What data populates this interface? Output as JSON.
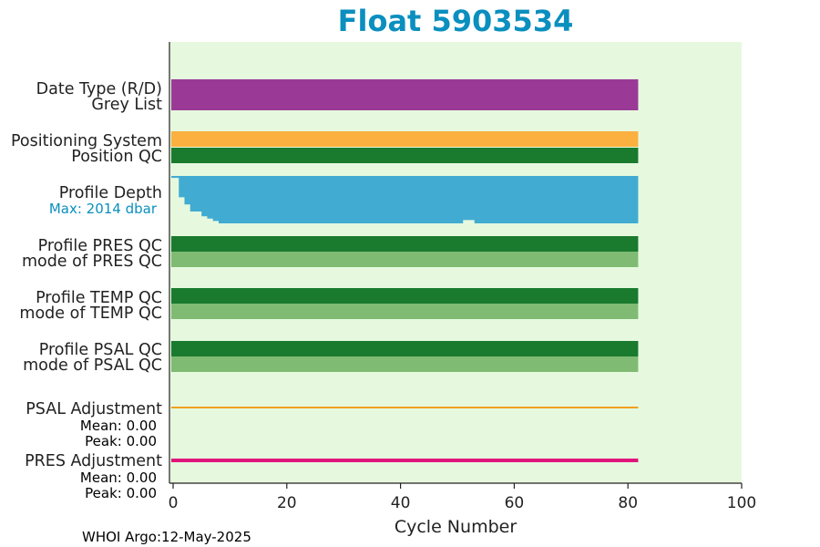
{
  "chart_data": {
    "type": "bar",
    "title": "Float 5903534",
    "xlabel": "Cycle Number",
    "xlim": [
      0,
      100
    ],
    "xticks": [
      0,
      20,
      40,
      60,
      80,
      100
    ],
    "grid": false,
    "rows": [
      {
        "label": "Date Type (R/D)",
        "values": {
          "start": 0,
          "end": 81
        },
        "color": "#9a3a96"
      },
      {
        "label": "Grey List",
        "values": {
          "start": 0,
          "end": 81
        },
        "color": "#9a3a96"
      },
      {
        "label": "Positioning System",
        "values": {
          "start": 0,
          "end": 81
        },
        "color": "#fbb03f"
      },
      {
        "label": "Position QC",
        "values": {
          "start": 0,
          "end": 81
        },
        "color": "#1a7a2e"
      },
      {
        "label": "Profile Depth",
        "max_text": "Max: 2014 dbar",
        "color": "#41abd2"
      },
      {
        "label": "Profile PRES QC",
        "values": {
          "start": 0,
          "end": 81
        },
        "color": "#1a7a2e"
      },
      {
        "label": "mode of PRES QC",
        "values": {
          "start": 0,
          "end": 81
        },
        "color": "#7fbb72"
      },
      {
        "label": "Profile TEMP QC",
        "values": {
          "start": 0,
          "end": 81
        },
        "color": "#1a7a2e"
      },
      {
        "label": "mode of TEMP QC",
        "values": {
          "start": 0,
          "end": 81
        },
        "color": "#7fbb72"
      },
      {
        "label": "Profile PSAL QC",
        "values": {
          "start": 0,
          "end": 81
        },
        "color": "#1a7a2e"
      },
      {
        "label": "mode of PSAL QC",
        "values": {
          "start": 0,
          "end": 81
        },
        "color": "#7fbb72"
      },
      {
        "label": "PSAL Adjustment",
        "mean_text": "Mean: 0.00",
        "peak_text": "Peak: 0.00",
        "values": {
          "start": 0,
          "end": 81
        },
        "color": "#f0a020"
      },
      {
        "label": "PRES Adjustment",
        "mean_text": "Mean: 0.00",
        "peak_text": "Peak: 0.00",
        "values": {
          "start": 0,
          "end": 81
        },
        "color": "#e0157a"
      }
    ],
    "profile_depth": {
      "max_dbar": 2014,
      "cycles": [
        0,
        1,
        2,
        3,
        4,
        5,
        6,
        7,
        8,
        9,
        10,
        20,
        30,
        40,
        50,
        51,
        52,
        53,
        60,
        70,
        81
      ],
      "fraction_of_max": [
        0.96,
        0.55,
        0.4,
        0.25,
        0.25,
        0.15,
        0.1,
        0.05,
        0.0,
        0.0,
        0.0,
        0.0,
        0.0,
        0.0,
        0.0,
        0.07,
        0.07,
        0.0,
        0.0,
        0.0,
        0.0
      ]
    },
    "background_color": "#e6f9df"
  },
  "footer": {
    "text": "WHOI Argo:12-May-2025"
  }
}
